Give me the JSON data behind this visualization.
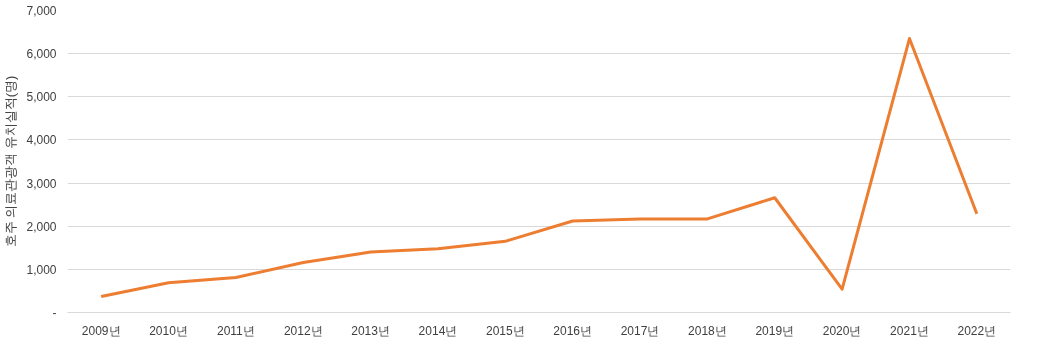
{
  "chart_data": {
    "type": "line",
    "ylabel": "호주 의료관광객 유치실적(명)",
    "categories": [
      "2009년",
      "2010년",
      "2011년",
      "2012년",
      "2013년",
      "2014년",
      "2015년",
      "2016년",
      "2017년",
      "2018년",
      "2019년",
      "2020년",
      "2021년",
      "2022년"
    ],
    "series": [
      {
        "color": "#ed7d31",
        "values": [
          370,
          690,
          810,
          1160,
          1400,
          1480,
          1650,
          2120,
          2170,
          2170,
          2660,
          540,
          6350,
          2290
        ]
      }
    ],
    "ylim": [
      0,
      7000
    ],
    "yticks": [
      {
        "value": 0,
        "label": "-"
      },
      {
        "value": 1000,
        "label": "1,000"
      },
      {
        "value": 2000,
        "label": "2,000"
      },
      {
        "value": 3000,
        "label": "3,000"
      },
      {
        "value": 4000,
        "label": "4,000"
      },
      {
        "value": 5000,
        "label": "5,000"
      },
      {
        "value": 6000,
        "label": "6,000"
      },
      {
        "value": 7000,
        "label": "7,000"
      }
    ],
    "grid": "y",
    "marker": "none",
    "line_style": "solid"
  }
}
